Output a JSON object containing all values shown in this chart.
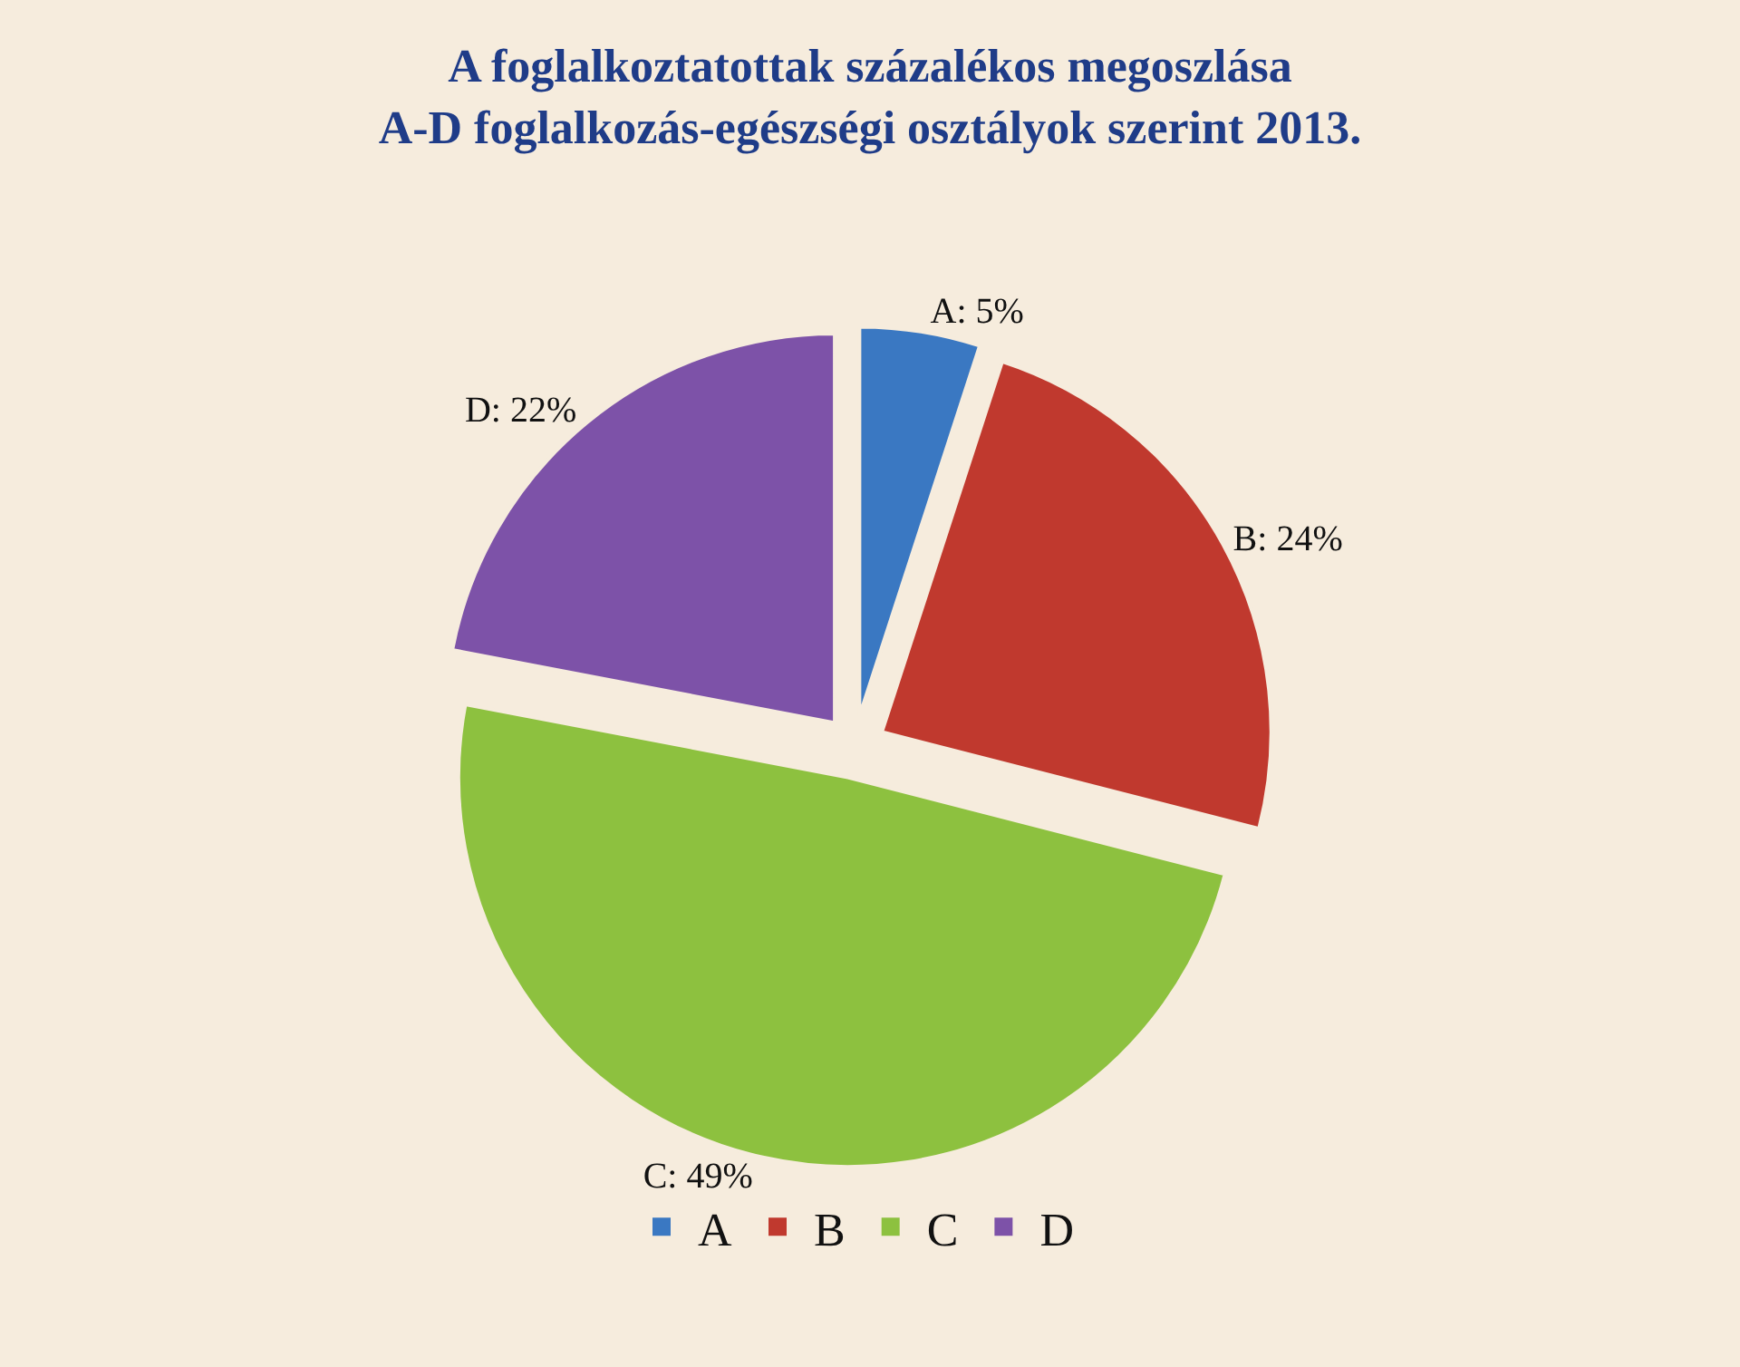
{
  "chart_data": {
    "type": "pie",
    "title": "A foglalkoztatottak százalékos megoszlása\nA-D foglalkozás-egészségi osztályok szerint 2013.",
    "categories": [
      "A",
      "B",
      "C",
      "D"
    ],
    "values": [
      5,
      24,
      49,
      22
    ],
    "colors": [
      "#3a78c2",
      "#c0392e",
      "#8dc13f",
      "#7d52a8"
    ],
    "value_labels": [
      "A: 5%",
      "B: 24%",
      "C: 49%",
      "D: 22%"
    ],
    "legend": "bottom"
  }
}
